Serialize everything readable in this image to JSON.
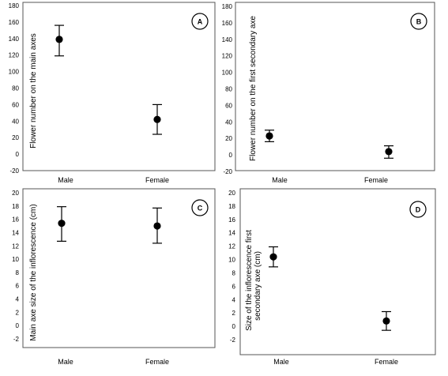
{
  "chart_data": [
    {
      "type": "scatter",
      "panel": "A",
      "ylabel": "Flower number on the main axes",
      "categories": [
        "Male",
        "Female"
      ],
      "y_ticks": [
        "-20",
        "0",
        "20",
        "40",
        "60",
        "80",
        "100",
        "120",
        "140",
        "160",
        "180"
      ],
      "ylim": [
        -20,
        180
      ],
      "values": [
        139,
        42
      ],
      "error_low": [
        119,
        24
      ],
      "error_high": [
        156,
        60
      ],
      "grid": false
    },
    {
      "type": "scatter",
      "panel": "B",
      "ylabel": "Flower number on the first secondary axe",
      "categories": [
        "Male",
        "Female"
      ],
      "y_ticks": [
        "-20",
        "0",
        "20",
        "40",
        "60",
        "80",
        "100",
        "120",
        "140",
        "160",
        "180"
      ],
      "ylim": [
        -20,
        180
      ],
      "values": [
        23,
        4
      ],
      "error_low": [
        16,
        -4
      ],
      "error_high": [
        30,
        11
      ],
      "grid": false
    },
    {
      "type": "scatter",
      "panel": "C",
      "ylabel": "Main axe size of the inflorescence (cm)",
      "categories": [
        "Male",
        "Female"
      ],
      "y_ticks": [
        "-2",
        "0",
        "2",
        "4",
        "6",
        "8",
        "10",
        "12",
        "14",
        "16",
        "18",
        "20"
      ],
      "ylim": [
        -2,
        20
      ],
      "values": [
        15.4,
        15.0
      ],
      "error_low": [
        12.7,
        12.4
      ],
      "error_high": [
        17.9,
        17.7
      ],
      "grid": false
    },
    {
      "type": "scatter",
      "panel": "D",
      "ylabel": "Size of the inflorescence first secondary axe (cm)",
      "ylabel_lines": [
        "Size of the inflorescence first",
        "secondary axe (cm)"
      ],
      "categories": [
        "Male",
        "Female"
      ],
      "y_ticks": [
        "-2",
        "0",
        "2",
        "4",
        "6",
        "8",
        "10",
        "12",
        "14",
        "16",
        "18",
        "20"
      ],
      "ylim": [
        -2,
        20
      ],
      "values": [
        10.4,
        0.8
      ],
      "error_low": [
        8.9,
        -0.6
      ],
      "error_high": [
        11.9,
        2.2
      ],
      "grid": false
    }
  ]
}
